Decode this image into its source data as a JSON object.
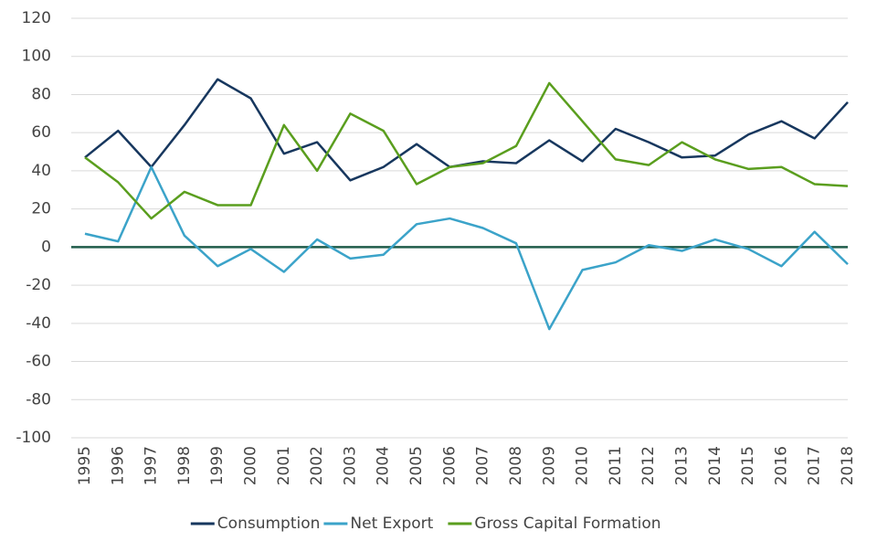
{
  "chart_data": {
    "type": "line",
    "categories": [
      "1995",
      "1996",
      "1997",
      "1998",
      "1999",
      "2000",
      "2001",
      "2002",
      "2003",
      "2004",
      "2005",
      "2006",
      "2007",
      "2008",
      "2009",
      "2010",
      "2011",
      "2012",
      "2013",
      "2014",
      "2015",
      "2016",
      "2017",
      "2018"
    ],
    "series": [
      {
        "name": "Consumption",
        "color": "#17375e",
        "values": [
          47,
          61,
          42,
          64,
          88,
          78,
          49,
          55,
          35,
          42,
          54,
          42,
          45,
          44,
          56,
          45,
          62,
          55,
          47,
          48,
          59,
          66,
          57,
          76
        ]
      },
      {
        "name": "Net Export",
        "color": "#3ba3c9",
        "values": [
          7,
          3,
          42,
          6,
          -10,
          -1,
          -13,
          4,
          -6,
          -4,
          12,
          15,
          10,
          2,
          -43,
          -12,
          -8,
          1,
          -2,
          4,
          -1,
          -10,
          8,
          -9
        ]
      },
      {
        "name": "Gross Capital Formation",
        "color": "#5a9e1e",
        "values": [
          47,
          34,
          15,
          29,
          22,
          22,
          64,
          40,
          70,
          61,
          33,
          42,
          44,
          53,
          86,
          66,
          46,
          43,
          55,
          46,
          41,
          42,
          33,
          32
        ]
      }
    ],
    "ylim": [
      -100,
      120
    ],
    "yticks": [
      -100,
      -80,
      -60,
      -40,
      -20,
      0,
      20,
      40,
      60,
      80,
      100,
      120
    ],
    "grid": true,
    "legend": "bottom"
  }
}
